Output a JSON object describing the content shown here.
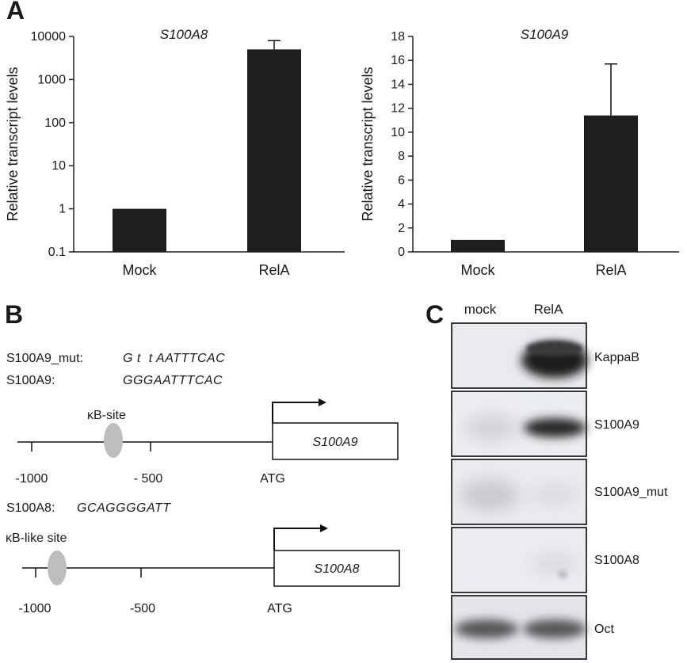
{
  "panels": {
    "a": "A",
    "b": "B",
    "c": "C"
  },
  "chart_data": [
    {
      "type": "bar",
      "title": "S100A8",
      "ylabel": "Relative transcript levels",
      "xlabel": "",
      "yscale": "log",
      "ylim": [
        0.1,
        10000
      ],
      "yticks": [
        0.1,
        1,
        10,
        100,
        1000,
        10000
      ],
      "ytick_labels": [
        "0.1",
        "1",
        "10",
        "100",
        "1000",
        "10000"
      ],
      "categories": [
        "Mock",
        "RelA"
      ],
      "values": [
        1,
        5000
      ],
      "error_upper": [
        null,
        8000
      ]
    },
    {
      "type": "bar",
      "title": "S100A9",
      "ylabel": "Relative transcript levels",
      "xlabel": "",
      "yscale": "linear",
      "ylim": [
        0,
        18
      ],
      "yticks": [
        0,
        2,
        4,
        6,
        8,
        10,
        12,
        14,
        16,
        18
      ],
      "ytick_labels": [
        "0",
        "2",
        "4",
        "6",
        "8",
        "10",
        "12",
        "14",
        "16",
        "18"
      ],
      "categories": [
        "Mock",
        "RelA"
      ],
      "values": [
        1,
        11.4
      ],
      "error_upper": [
        null,
        15.7
      ]
    }
  ],
  "diagram": {
    "seq_mut_label": "S100A9_mut:",
    "seq_mut": "G t  t AATTTCAC",
    "seq_wt_label": "S100A9:",
    "seq_wt": "GGGAATTTCAC",
    "site1_label": "κB-site",
    "gene1": "S100A9",
    "pos1": [
      "-1000",
      "- 500",
      "ATG"
    ],
    "seq_a8_label": "S100A8:",
    "seq_a8": "GCAGGGGATT",
    "site2_label": "κB-like site",
    "gene2": "S100A8",
    "pos2": [
      "-1000",
      "-500",
      "ATG"
    ]
  },
  "blot": {
    "lanes": [
      "mock",
      "RelA"
    ],
    "probes": [
      "KappaB",
      "S100A9",
      "S100A9_mut",
      "S100A8",
      "Oct"
    ]
  },
  "colors": {
    "bar": "#1e1e1e",
    "ellipse": "#bdbdbd",
    "blot_bg": "#e9e9ee"
  }
}
